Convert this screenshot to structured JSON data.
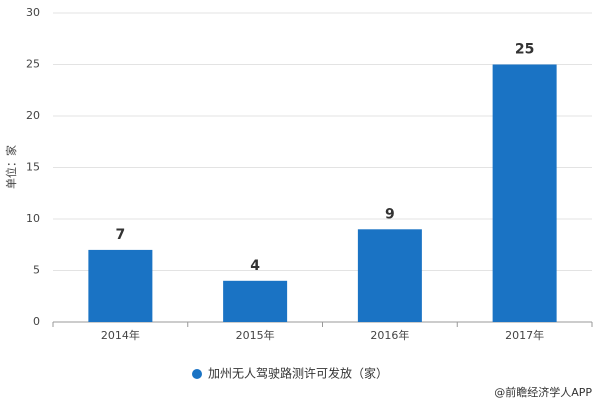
{
  "chart_data": {
    "type": "bar",
    "y_label": "单位：家",
    "categories": [
      "2014年",
      "2015年",
      "2016年",
      "2017年"
    ],
    "series": [
      {
        "name": "加州无人驾驶路测许可发放（家）",
        "color": "#1a73c4",
        "values": [
          7,
          4,
          9,
          25
        ]
      }
    ],
    "ylim": [
      0,
      30
    ],
    "yticks": [
      0,
      5,
      10,
      15,
      20,
      25,
      30
    ],
    "grid": true,
    "legend": "bottom",
    "source": "@前瞻经济学人APP"
  }
}
